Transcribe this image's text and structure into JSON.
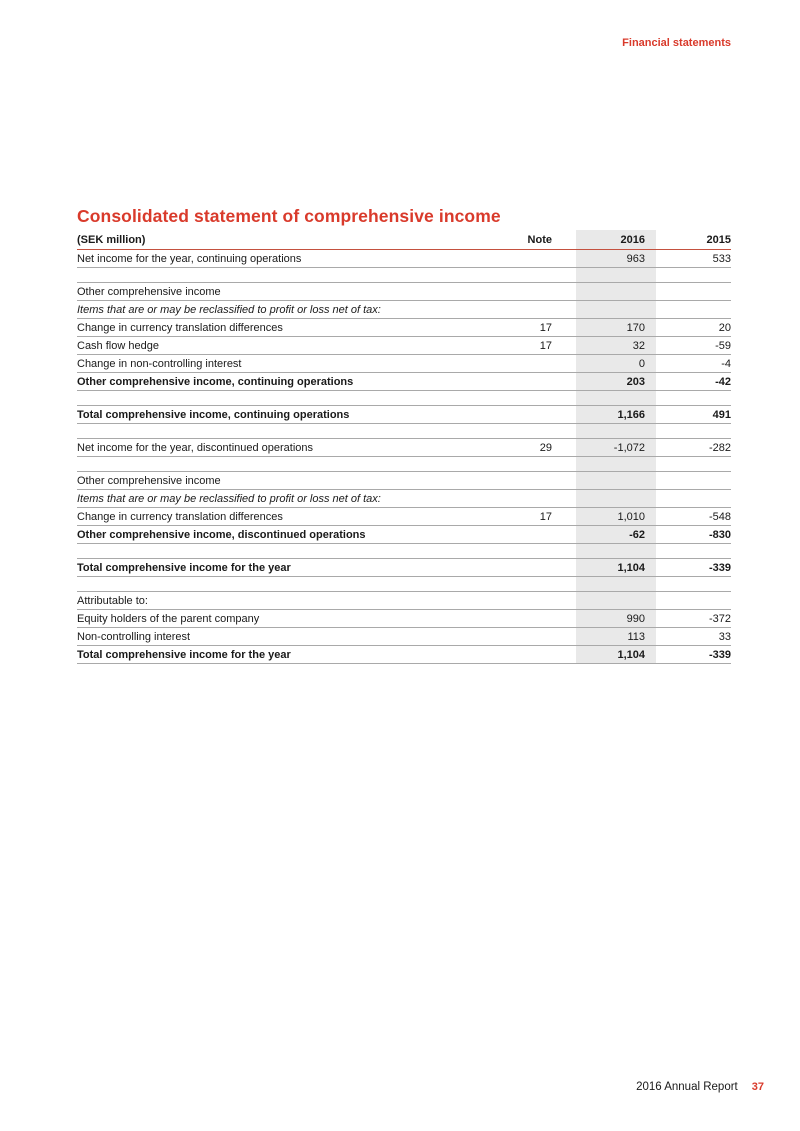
{
  "page": {
    "header_label": "Financial statements",
    "title": "Consolidated statement of comprehensive income",
    "footer": {
      "report_name": "2016 Annual Report",
      "page_number": "37"
    }
  },
  "colors": {
    "accent": "#d93a2b",
    "accent_line": "#c4513f",
    "band": "#e9e9e9",
    "line": "#a9a9a9"
  },
  "table": {
    "columns": {
      "label": "(SEK million)",
      "note": "Note",
      "y2016": "2016",
      "y2015": "2015"
    },
    "rows": [
      {
        "label": "Net income for the year, continuing operations",
        "note": "",
        "v2016": "963",
        "v2015": "533",
        "style": "normal"
      },
      {
        "spacer": true
      },
      {
        "label": "Other comprehensive income",
        "note": "",
        "v2016": "",
        "v2015": "",
        "style": "normal"
      },
      {
        "label": "Items that are or may be reclassified to profit or loss net of tax:",
        "note": "",
        "v2016": "",
        "v2015": "",
        "style": "italic"
      },
      {
        "label": "Change in currency translation differences",
        "note": "17",
        "v2016": "170",
        "v2015": "20",
        "style": "normal"
      },
      {
        "label": "Cash flow hedge",
        "note": "17",
        "v2016": "32",
        "v2015": "-59",
        "style": "normal"
      },
      {
        "label": "Change in non-controlling interest",
        "note": "",
        "v2016": "0",
        "v2015": "-4",
        "style": "normal"
      },
      {
        "label": "Other comprehensive income, continuing operations",
        "note": "",
        "v2016": "203",
        "v2015": "-42",
        "style": "bold"
      },
      {
        "spacer": true
      },
      {
        "label": "Total comprehensive income, continuing operations",
        "note": "",
        "v2016": "1,166",
        "v2015": "491",
        "style": "bold"
      },
      {
        "spacer": true
      },
      {
        "label": "Net income for the year, discontinued operations",
        "note": "29",
        "v2016": "-1,072",
        "v2015": "-282",
        "style": "normal"
      },
      {
        "spacer": true
      },
      {
        "label": "Other comprehensive income",
        "note": "",
        "v2016": "",
        "v2015": "",
        "style": "normal"
      },
      {
        "label": "Items that are or may be reclassified to profit or loss net of tax:",
        "note": "",
        "v2016": "",
        "v2015": "",
        "style": "italic"
      },
      {
        "label": "Change in currency translation differences",
        "note": "17",
        "v2016": "1,010",
        "v2015": "-548",
        "style": "normal"
      },
      {
        "label": "Other comprehensive income, discontinued operations",
        "note": "",
        "v2016": "-62",
        "v2015": "-830",
        "style": "bold"
      },
      {
        "spacer": true
      },
      {
        "label": "Total comprehensive income for the year",
        "note": "",
        "v2016": "1,104",
        "v2015": "-339",
        "style": "bold"
      },
      {
        "spacer": true
      },
      {
        "label": "Attributable to:",
        "note": "",
        "v2016": "",
        "v2015": "",
        "style": "normal"
      },
      {
        "label": "Equity holders of the parent company",
        "note": "",
        "v2016": "990",
        "v2015": "-372",
        "style": "normal"
      },
      {
        "label": "Non-controlling interest",
        "note": "",
        "v2016": "113",
        "v2015": "33",
        "style": "normal"
      },
      {
        "label": "Total comprehensive income for the year",
        "note": "",
        "v2016": "1,104",
        "v2015": "-339",
        "style": "bold"
      }
    ]
  }
}
